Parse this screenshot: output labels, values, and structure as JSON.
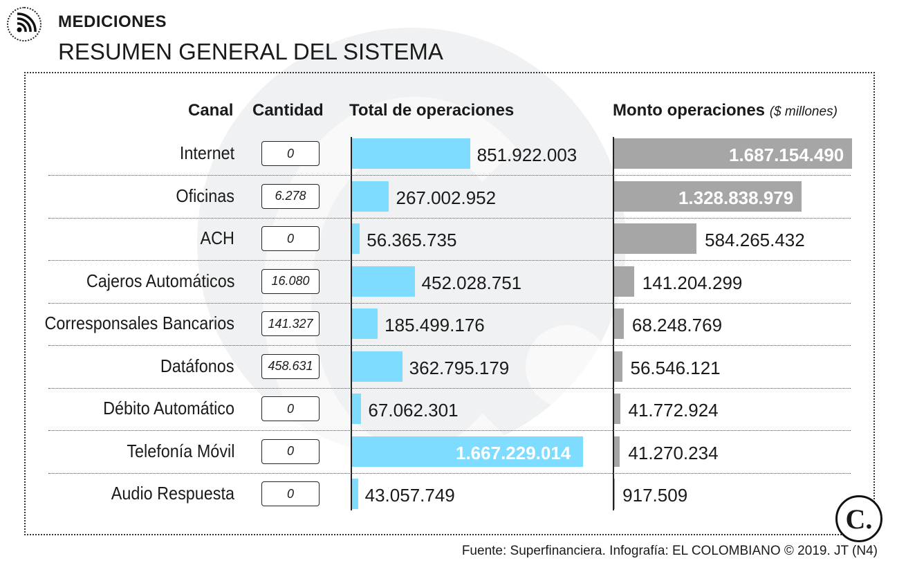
{
  "header": {
    "kicker": "MEDICIONES",
    "title": "RESUMEN GENERAL DEL SISTEMA"
  },
  "columns": {
    "canal": "Canal",
    "cantidad": "Cantidad",
    "total_ops": "Total de operaciones",
    "monto": "Monto operaciones",
    "monto_unit": "($ millones)"
  },
  "colors": {
    "ops_bar": "#7ddcff",
    "monto_bar": "#a6a6a6"
  },
  "icons": {
    "feed": "rss-icon",
    "brand": "el-colombiano-logo"
  },
  "chart_data": {
    "type": "bar",
    "categories": [
      "Internet",
      "Oficinas",
      "ACH",
      "Cajeros Automáticos",
      "Corresponsales Bancarios",
      "Datáfonos",
      "Débito Automático",
      "Telefonía Móvil",
      "Audio Respuesta"
    ],
    "cantidad": [
      "0",
      "6.278",
      "0",
      "16.080",
      "141.327",
      "458.631",
      "0",
      "0",
      "0"
    ],
    "series": [
      {
        "name": "Total de operaciones",
        "values": [
          851922003,
          267002952,
          56365735,
          452028751,
          185499176,
          362795179,
          67062301,
          1667229014,
          43057749
        ],
        "labels": [
          "851.922.003",
          "267.002.952",
          "56.365.735",
          "452.028.751",
          "185.499.176",
          "362.795.179",
          "67.062.301",
          "1.667.229.014",
          "43.057.749"
        ]
      },
      {
        "name": "Monto operaciones",
        "values": [
          1687154490,
          1328838979,
          584265432,
          141204299,
          68248769,
          56546121,
          41772924,
          41270234,
          917509
        ],
        "labels": [
          "1.687.154.490",
          "1.328.838.979",
          "584.265.432",
          "141.204.299",
          "68.248.769",
          "56.546.121",
          "41.772.924",
          "41.270.234",
          "917.509"
        ]
      }
    ]
  },
  "source": "Fuente: Superfinanciera. Infografía: EL COLOMBIANO © 2019. JT (N4)",
  "logo_text": "C."
}
